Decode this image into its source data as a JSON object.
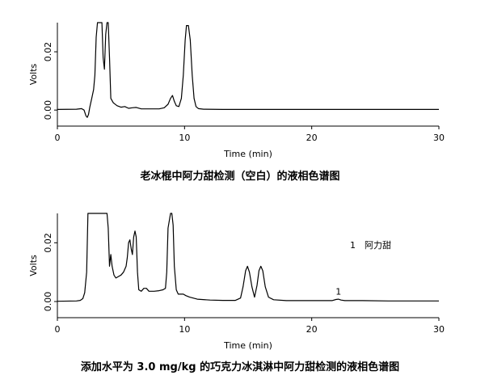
{
  "chart_data": [
    {
      "type": "line",
      "caption": "老冰棍中阿力甜检测（空白）的液相色谱图",
      "xlabel": "Time (min)",
      "ylabel": "Volts",
      "xlim": [
        0,
        30
      ],
      "ylim": [
        -0.0055,
        0.03
      ],
      "x_ticks": [
        0,
        10,
        20,
        30
      ],
      "y_ticks": [
        0.0,
        0.02
      ],
      "y_tick_labels": [
        "0.00",
        "0.02"
      ],
      "grid": false,
      "annotations": [],
      "series": [
        {
          "x": [
            0,
            1.5,
            1.9,
            2.1,
            2.25,
            2.35,
            2.45,
            2.55,
            2.7,
            2.85,
            2.95,
            3.05,
            3.15,
            3.25,
            3.4,
            3.5,
            3.6,
            3.7,
            3.8,
            3.9,
            4.0,
            4.1,
            4.2,
            4.4,
            4.7,
            5.0,
            5.3,
            5.6,
            5.9,
            6.2,
            6.6,
            7.2,
            8.0,
            8.4,
            8.7,
            8.9,
            9.05,
            9.2,
            9.35,
            9.55,
            9.75,
            9.9,
            10.05,
            10.15,
            10.3,
            10.45,
            10.6,
            10.75,
            10.9,
            11.1,
            11.5,
            13,
            20,
            30
          ],
          "y": [
            0.0002,
            0.0003,
            0.0005,
            0.0,
            -0.002,
            -0.0025,
            -0.0015,
            0.001,
            0.004,
            0.007,
            0.012,
            0.025,
            0.03,
            0.03,
            0.03,
            0.03,
            0.018,
            0.014,
            0.026,
            0.03,
            0.03,
            0.018,
            0.004,
            0.0025,
            0.0015,
            0.001,
            0.0012,
            0.0006,
            0.0008,
            0.0009,
            0.0004,
            0.0004,
            0.0004,
            0.0008,
            0.002,
            0.004,
            0.005,
            0.003,
            0.0015,
            0.0012,
            0.004,
            0.012,
            0.024,
            0.029,
            0.029,
            0.024,
            0.012,
            0.004,
            0.0012,
            0.0005,
            0.0003,
            0.0002,
            0.0002,
            0.0002
          ]
        }
      ]
    },
    {
      "type": "line",
      "caption": "添加水平为 3.0 mg/kg 的巧克力冰淇淋中阿力甜检测的液相色谱图",
      "xlabel": "Time (min)",
      "ylabel": "Volts",
      "xlim": [
        0,
        30
      ],
      "ylim": [
        -0.0055,
        0.03
      ],
      "x_ticks": [
        0,
        10,
        20,
        30
      ],
      "y_ticks": [
        0.0,
        0.02
      ],
      "y_tick_labels": [
        "0.00",
        "0.02"
      ],
      "grid": false,
      "legend": [
        {
          "number": "1",
          "name": "阿力甜"
        }
      ],
      "annotations": [
        {
          "text": "1",
          "x": 22.1,
          "y": 0.0012
        }
      ],
      "series": [
        {
          "x": [
            0,
            1.5,
            1.8,
            2.0,
            2.15,
            2.3,
            2.4,
            2.5,
            3.9,
            4.0,
            4.1,
            4.15,
            4.2,
            4.3,
            4.45,
            4.6,
            4.8,
            5.0,
            5.2,
            5.4,
            5.5,
            5.6,
            5.7,
            5.8,
            5.9,
            6.0,
            6.1,
            6.2,
            6.3,
            6.4,
            6.6,
            6.8,
            7.0,
            7.2,
            7.6,
            8.0,
            8.3,
            8.5,
            8.6,
            8.7,
            8.9,
            9.0,
            9.1,
            9.2,
            9.35,
            9.5,
            9.7,
            9.9,
            10.1,
            10.4,
            11,
            12,
            13,
            14,
            14.4,
            14.6,
            14.8,
            14.95,
            15.1,
            15.3,
            15.5,
            15.7,
            15.85,
            16.0,
            16.15,
            16.35,
            16.6,
            17.0,
            18,
            20,
            21.6,
            21.9,
            22.1,
            22.3,
            22.6,
            23,
            24,
            26,
            30
          ],
          "y": [
            0.0001,
            0.0002,
            0.0004,
            0.001,
            0.003,
            0.01,
            0.03,
            0.03,
            0.03,
            0.025,
            0.012,
            0.014,
            0.016,
            0.012,
            0.009,
            0.008,
            0.0085,
            0.009,
            0.01,
            0.012,
            0.015,
            0.02,
            0.021,
            0.018,
            0.016,
            0.022,
            0.024,
            0.022,
            0.01,
            0.004,
            0.0035,
            0.0045,
            0.0045,
            0.0035,
            0.0035,
            0.0037,
            0.004,
            0.0045,
            0.01,
            0.025,
            0.03,
            0.03,
            0.026,
            0.012,
            0.004,
            0.0025,
            0.0025,
            0.0025,
            0.002,
            0.0015,
            0.0008,
            0.0005,
            0.0004,
            0.0004,
            0.0012,
            0.005,
            0.0105,
            0.012,
            0.01,
            0.005,
            0.0015,
            0.0055,
            0.0105,
            0.012,
            0.0105,
            0.005,
            0.0015,
            0.0006,
            0.0003,
            0.0003,
            0.0003,
            0.0007,
            0.0008,
            0.0005,
            0.0003,
            0.0003,
            0.0003,
            0.0002,
            0.0002
          ]
        }
      ]
    }
  ]
}
